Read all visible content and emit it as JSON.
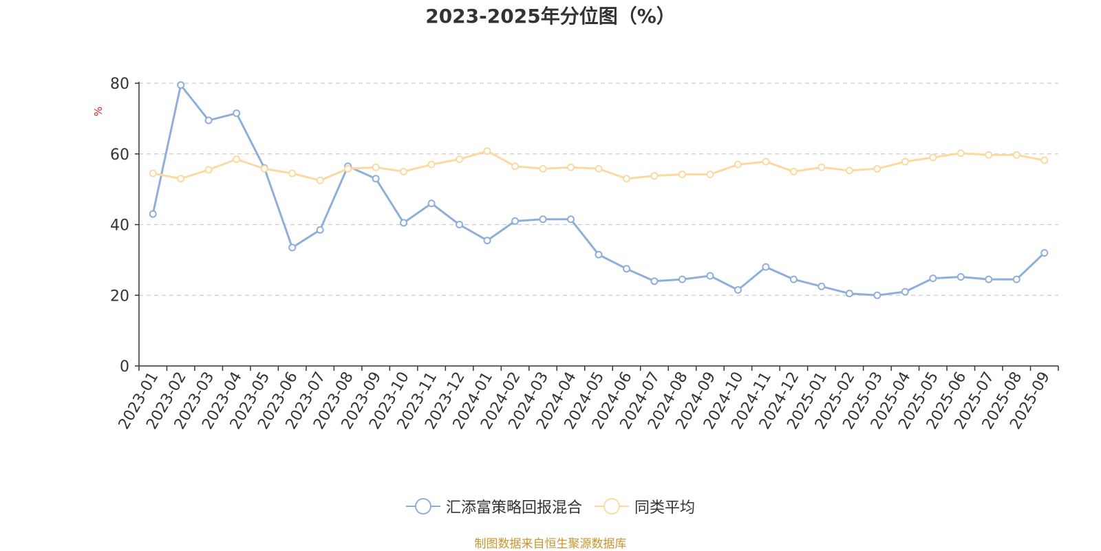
{
  "chart_data": {
    "type": "line",
    "title": "2023-2025年分位图（%）",
    "ylabel": "%",
    "xlabel": "",
    "ylim": [
      0,
      80
    ],
    "yticks": [
      0,
      20,
      40,
      60,
      80
    ],
    "grid": true,
    "legend_position": "bottom",
    "categories": [
      "2023-01",
      "2023-02",
      "2023-03",
      "2023-04",
      "2023-05",
      "2023-06",
      "2023-07",
      "2023-08",
      "2023-09",
      "2023-10",
      "2023-11",
      "2023-12",
      "2024-01",
      "2024-02",
      "2024-03",
      "2024-04",
      "2024-05",
      "2024-06",
      "2024-07",
      "2024-08",
      "2024-09",
      "2024-10",
      "2024-11",
      "2024-12",
      "2025-01",
      "2025-02",
      "2025-03",
      "2025-04",
      "2025-05",
      "2025-06",
      "2025-07",
      "2025-08",
      "2025-09"
    ],
    "series": [
      {
        "name": "汇添富策略回报混合",
        "color": "#8eaedc",
        "values": [
          43.0,
          79.5,
          69.5,
          71.5,
          56.0,
          33.5,
          38.5,
          56.5,
          53.0,
          40.5,
          46.0,
          40.0,
          35.5,
          41.0,
          41.5,
          41.5,
          31.5,
          27.5,
          24.0,
          24.5,
          25.5,
          21.5,
          28.0,
          24.5,
          22.5,
          20.5,
          20.0,
          21.0,
          24.8,
          25.2,
          24.5,
          24.5,
          32.0
        ]
      },
      {
        "name": "同类平均",
        "color": "#fcd9a0",
        "values": [
          54.5,
          53.0,
          55.5,
          58.5,
          55.8,
          54.5,
          52.5,
          55.8,
          56.2,
          55.0,
          57.0,
          58.5,
          60.8,
          56.5,
          55.8,
          56.2,
          55.8,
          53.0,
          53.8,
          54.2,
          54.2,
          57.0,
          57.8,
          55.0,
          56.2,
          55.3,
          55.8,
          57.8,
          59.0,
          60.2,
          59.7,
          59.7,
          58.2
        ]
      }
    ]
  },
  "source_text": "制图数据来自恒生聚源数据库"
}
